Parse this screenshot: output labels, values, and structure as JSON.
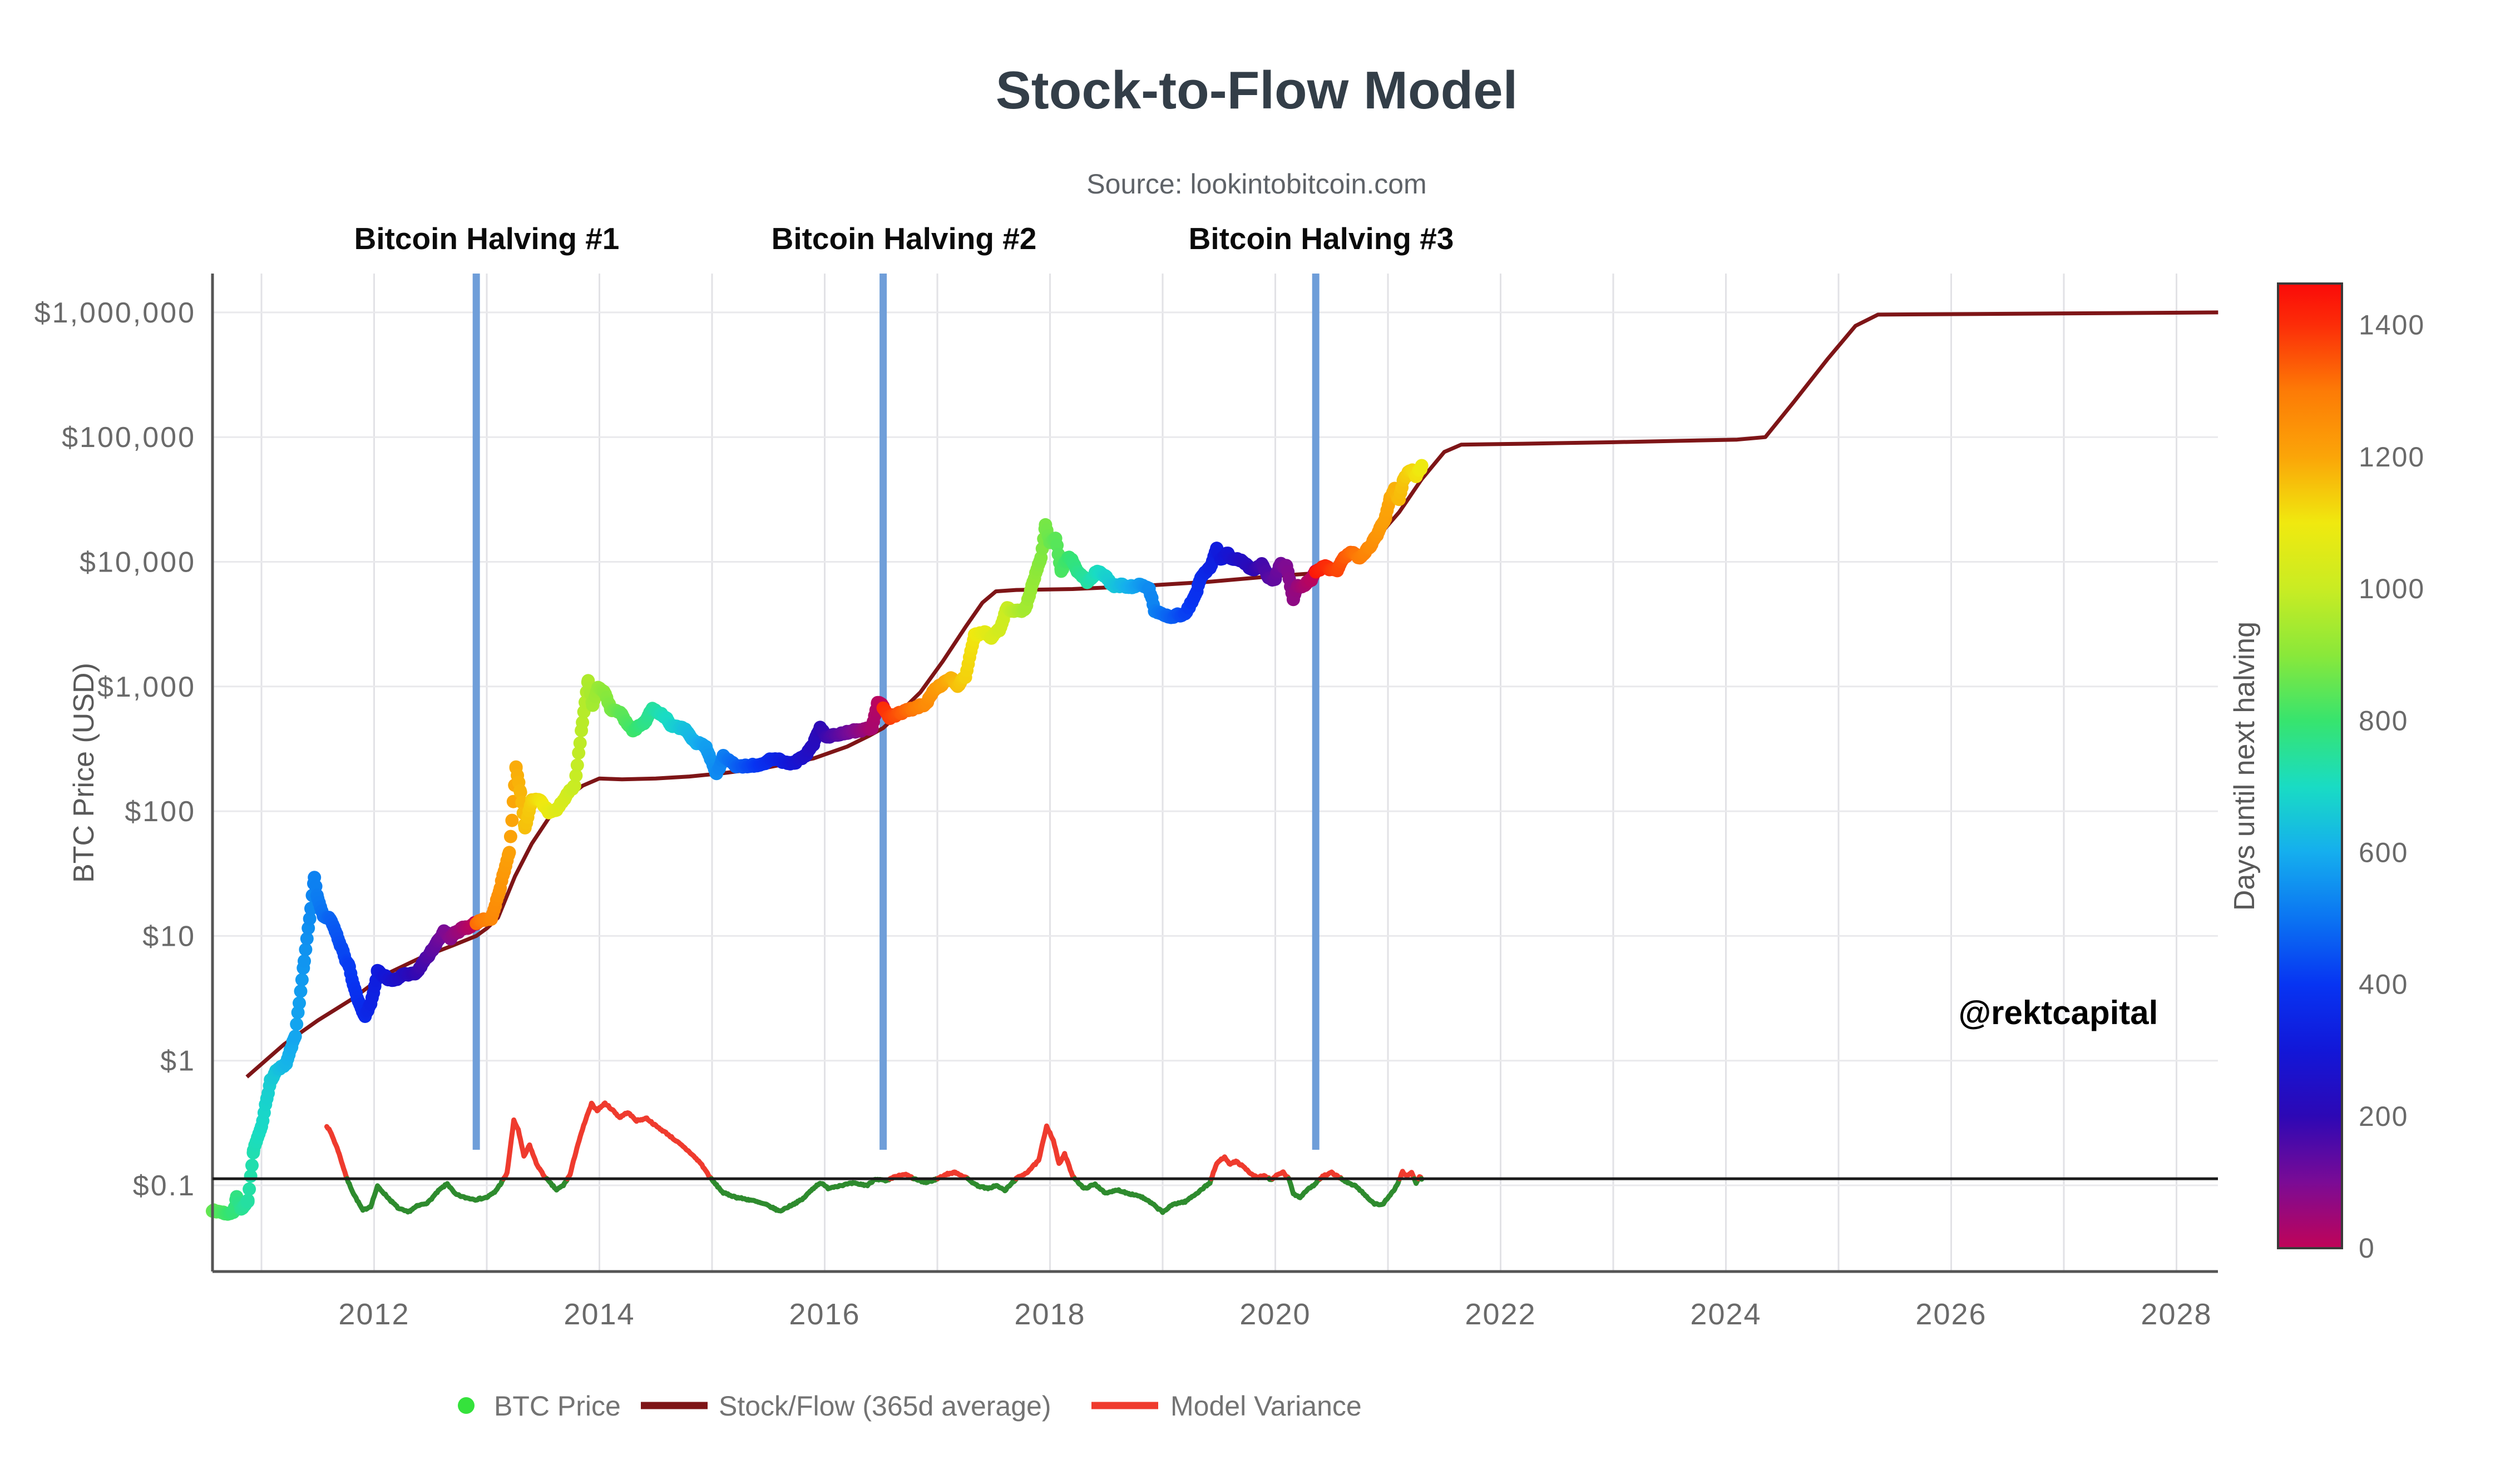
{
  "title": "Stock-to-Flow Model",
  "source": "Source: lookintobitcoin.com",
  "watermark": "@rektcapital",
  "y_axis_title": "BTC Price (USD)",
  "colorbar_title": "Days until next halving",
  "annotations": {
    "halving1": "Bitcoin Halving #1",
    "halving2": "Bitcoin Halving #2",
    "halving3": "Bitcoin Halving #3"
  },
  "legend": {
    "btc_label": "BTC Price",
    "s2f_label": "Stock/Flow (365d average)",
    "variance_label": "Model Variance"
  },
  "colors": {
    "title": "#333e48",
    "s2f_line": "#7e1517",
    "variance_red": "#ef3b2e",
    "variance_green": "#2e8b2e",
    "halving_line": "#6f9ed9",
    "legend_dot_green": "#35e23c",
    "reference_line": "#1a1a1a",
    "axis_frame": "#555555",
    "grid_vertical": "#e2e2e6",
    "grid_horizontal": "#e9e9ec"
  },
  "chart_data": {
    "type": "scatter",
    "title": "Stock-to-Flow Model",
    "xlabel": "",
    "ylabel": "BTC Price (USD)",
    "x_axis": {
      "range": [
        2010.565,
        2028.37
      ],
      "tick_values": [
        2012,
        2014,
        2016,
        2018,
        2020,
        2022,
        2024,
        2026,
        2028
      ],
      "tick_labels": [
        "2012",
        "2014",
        "2016",
        "2018",
        "2020",
        "2022",
        "2024",
        "2026",
        "2028"
      ],
      "gridline_years": [
        2011,
        2012,
        2013,
        2014,
        2015,
        2016,
        2017,
        2018,
        2019,
        2020,
        2021,
        2022,
        2023,
        2024,
        2025,
        2026,
        2027,
        2028
      ]
    },
    "y_axis": {
      "scale": "log",
      "range": [
        0.02,
        2100000
      ],
      "tick_values": [
        1000000,
        100000,
        10000,
        1000,
        100,
        10,
        1,
        0.1
      ],
      "tick_labels": [
        "$1,000,000",
        "$100,000",
        "$10,000",
        "$1,000",
        "$100",
        "$10",
        "$1",
        "$0.1"
      ]
    },
    "reference_line_value": 0.113,
    "halvings": {
      "line_years": [
        2012.907,
        2016.519,
        2020.359
      ],
      "cycle_boundaries": [
        2012.907,
        2016.519,
        2020.359,
        2024.3
      ],
      "max_days": 1463
    },
    "colorbar": {
      "tick_values": [
        0,
        200,
        400,
        600,
        800,
        1000,
        1200,
        1400
      ],
      "vmax": 1463,
      "stops": [
        [
          0,
          "#c00458"
        ],
        [
          100,
          "#7b0b95"
        ],
        [
          200,
          "#2d08b5"
        ],
        [
          300,
          "#1217d8"
        ],
        [
          400,
          "#0734f2"
        ],
        [
          500,
          "#0b74f2"
        ],
        [
          600,
          "#15aeee"
        ],
        [
          700,
          "#19dcc4"
        ],
        [
          800,
          "#37e46e"
        ],
        [
          900,
          "#8ae83a"
        ],
        [
          1000,
          "#c9ec23"
        ],
        [
          1100,
          "#f0e90f"
        ],
        [
          1200,
          "#fba508"
        ],
        [
          1300,
          "#fd7b06"
        ],
        [
          1400,
          "#fc2d08"
        ],
        [
          1463,
          "#fb0a09"
        ]
      ]
    },
    "btc_price_keypoints": [
      [
        2010.565,
        0.062
      ],
      [
        2010.7,
        0.06
      ],
      [
        2010.75,
        0.063
      ],
      [
        2010.78,
        0.085
      ],
      [
        2010.82,
        0.068
      ],
      [
        2010.88,
        0.075
      ],
      [
        2010.93,
        0.19
      ],
      [
        2011.0,
        0.3
      ],
      [
        2011.08,
        0.68
      ],
      [
        2011.15,
        0.85
      ],
      [
        2011.22,
        0.95
      ],
      [
        2011.3,
        1.6
      ],
      [
        2011.38,
        6.5
      ],
      [
        2011.44,
        17
      ],
      [
        2011.47,
        31
      ],
      [
        2011.5,
        20
      ],
      [
        2011.55,
        14.5
      ],
      [
        2011.62,
        13
      ],
      [
        2011.7,
        8
      ],
      [
        2011.78,
        5.5
      ],
      [
        2011.85,
        3.2
      ],
      [
        2011.92,
        2.3
      ],
      [
        2011.97,
        3.0
      ],
      [
        2012.03,
        5.4
      ],
      [
        2012.1,
        4.9
      ],
      [
        2012.18,
        4.4
      ],
      [
        2012.28,
        4.8
      ],
      [
        2012.38,
        5.0
      ],
      [
        2012.46,
        6.5
      ],
      [
        2012.55,
        8.8
      ],
      [
        2012.62,
        11.2
      ],
      [
        2012.68,
        10.2
      ],
      [
        2012.75,
        10.9
      ],
      [
        2012.82,
        11.8
      ],
      [
        2012.907,
        12.3
      ],
      [
        2012.96,
        13.2
      ],
      [
        2013.04,
        13.8
      ],
      [
        2013.12,
        24
      ],
      [
        2013.2,
        47
      ],
      [
        2013.26,
        230
      ],
      [
        2013.3,
        145
      ],
      [
        2013.34,
        77
      ],
      [
        2013.4,
        117
      ],
      [
        2013.48,
        120
      ],
      [
        2013.55,
        97
      ],
      [
        2013.62,
        100
      ],
      [
        2013.7,
        123
      ],
      [
        2013.78,
        155
      ],
      [
        2013.85,
        520
      ],
      [
        2013.9,
        1120
      ],
      [
        2013.94,
        700
      ],
      [
        2013.99,
        940
      ],
      [
        2014.04,
        830
      ],
      [
        2014.1,
        620
      ],
      [
        2014.2,
        590
      ],
      [
        2014.3,
        450
      ],
      [
        2014.4,
        500
      ],
      [
        2014.47,
        640
      ],
      [
        2014.55,
        590
      ],
      [
        2014.65,
        500
      ],
      [
        2014.75,
        480
      ],
      [
        2014.85,
        390
      ],
      [
        2014.95,
        320
      ],
      [
        2015.04,
        210
      ],
      [
        2015.1,
        270
      ],
      [
        2015.2,
        240
      ],
      [
        2015.3,
        235
      ],
      [
        2015.4,
        230
      ],
      [
        2015.5,
        263
      ],
      [
        2015.6,
        255
      ],
      [
        2015.67,
        235
      ],
      [
        2015.75,
        255
      ],
      [
        2015.83,
        270
      ],
      [
        2015.9,
        330
      ],
      [
        2015.96,
        450
      ],
      [
        2016.02,
        385
      ],
      [
        2016.1,
        410
      ],
      [
        2016.2,
        425
      ],
      [
        2016.3,
        440
      ],
      [
        2016.42,
        450
      ],
      [
        2016.47,
        700
      ],
      [
        2016.519,
        655
      ],
      [
        2016.58,
        580
      ],
      [
        2016.65,
        600
      ],
      [
        2016.73,
        630
      ],
      [
        2016.82,
        700
      ],
      [
        2016.9,
        740
      ],
      [
        2016.98,
        960
      ],
      [
        2017.05,
        1080
      ],
      [
        2017.12,
        1190
      ],
      [
        2017.18,
        1040
      ],
      [
        2017.25,
        1250
      ],
      [
        2017.33,
        2550
      ],
      [
        2017.42,
        2650
      ],
      [
        2017.48,
        2450
      ],
      [
        2017.55,
        2750
      ],
      [
        2017.62,
        4300
      ],
      [
        2017.7,
        4200
      ],
      [
        2017.78,
        4400
      ],
      [
        2017.85,
        7300
      ],
      [
        2017.92,
        11000
      ],
      [
        2017.96,
        19200
      ],
      [
        2018.0,
        14000
      ],
      [
        2018.05,
        15200
      ],
      [
        2018.1,
        8300
      ],
      [
        2018.17,
        10900
      ],
      [
        2018.25,
        8200
      ],
      [
        2018.33,
        7000
      ],
      [
        2018.42,
        8300
      ],
      [
        2018.5,
        7600
      ],
      [
        2018.57,
        6300
      ],
      [
        2018.65,
        6500
      ],
      [
        2018.73,
        6400
      ],
      [
        2018.8,
        6700
      ],
      [
        2018.88,
        6300
      ],
      [
        2018.93,
        4100
      ],
      [
        2019.0,
        3800
      ],
      [
        2019.05,
        3600
      ],
      [
        2019.12,
        3900
      ],
      [
        2019.2,
        4000
      ],
      [
        2019.28,
        5300
      ],
      [
        2019.35,
        7900
      ],
      [
        2019.42,
        8600
      ],
      [
        2019.48,
        12600
      ],
      [
        2019.52,
        10800
      ],
      [
        2019.58,
        11800
      ],
      [
        2019.65,
        10300
      ],
      [
        2019.72,
        9800
      ],
      [
        2019.8,
        8300
      ],
      [
        2019.88,
        9200
      ],
      [
        2019.95,
        7200
      ],
      [
        2020.0,
        7200
      ],
      [
        2020.05,
        9400
      ],
      [
        2020.1,
        8800
      ],
      [
        2020.16,
        5000
      ],
      [
        2020.2,
        6300
      ],
      [
        2020.27,
        6800
      ],
      [
        2020.32,
        7300
      ],
      [
        2020.359,
        8750
      ],
      [
        2020.42,
        9600
      ],
      [
        2020.48,
        9200
      ],
      [
        2020.55,
        9150
      ],
      [
        2020.62,
        11200
      ],
      [
        2020.7,
        11700
      ],
      [
        2020.75,
        10600
      ],
      [
        2020.82,
        13100
      ],
      [
        2020.88,
        15500
      ],
      [
        2020.93,
        19200
      ],
      [
        2020.98,
        23800
      ],
      [
        2021.02,
        33000
      ],
      [
        2021.06,
        38000
      ],
      [
        2021.1,
        31500
      ],
      [
        2021.14,
        48000
      ],
      [
        2021.18,
        52000
      ],
      [
        2021.22,
        57000
      ],
      [
        2021.25,
        49000
      ],
      [
        2021.28,
        55000
      ],
      [
        2021.3,
        58800
      ]
    ],
    "s2f_line": [
      [
        2010.87,
        0.74
      ],
      [
        2011.2,
        1.35
      ],
      [
        2011.5,
        2.1
      ],
      [
        2011.8,
        3.1
      ],
      [
        2012.1,
        4.9
      ],
      [
        2012.4,
        6.6
      ],
      [
        2012.7,
        8.4
      ],
      [
        2012.907,
        10.0
      ],
      [
        2013.0,
        11.5
      ],
      [
        2013.1,
        14
      ],
      [
        2013.25,
        30
      ],
      [
        2013.4,
        55
      ],
      [
        2013.55,
        88
      ],
      [
        2013.7,
        126
      ],
      [
        2013.85,
        160
      ],
      [
        2014.0,
        183
      ],
      [
        2014.2,
        180
      ],
      [
        2014.5,
        183
      ],
      [
        2014.8,
        190
      ],
      [
        2015.1,
        202
      ],
      [
        2015.5,
        225
      ],
      [
        2015.9,
        265
      ],
      [
        2016.2,
        330
      ],
      [
        2016.4,
        405
      ],
      [
        2016.519,
        465
      ],
      [
        2016.65,
        600
      ],
      [
        2016.85,
        900
      ],
      [
        2017.05,
        1600
      ],
      [
        2017.25,
        3000
      ],
      [
        2017.4,
        4700
      ],
      [
        2017.52,
        5800
      ],
      [
        2017.7,
        5950
      ],
      [
        2018.2,
        6050
      ],
      [
        2018.8,
        6400
      ],
      [
        2019.4,
        6900
      ],
      [
        2020.0,
        7700
      ],
      [
        2020.359,
        8100
      ],
      [
        2020.5,
        8600
      ],
      [
        2020.7,
        11000
      ],
      [
        2020.9,
        15500
      ],
      [
        2021.1,
        25000
      ],
      [
        2021.3,
        46000
      ],
      [
        2021.5,
        76000
      ],
      [
        2021.65,
        87000
      ],
      [
        2022.2,
        88500
      ],
      [
        2023.0,
        91000
      ],
      [
        2024.1,
        95500
      ],
      [
        2024.35,
        100000
      ],
      [
        2024.6,
        190000
      ],
      [
        2024.9,
        420000
      ],
      [
        2025.15,
        780000
      ],
      [
        2025.35,
        960000
      ],
      [
        2026.5,
        975000
      ],
      [
        2028.37,
        1000000
      ]
    ],
    "variance_keypoints": [
      [
        2011.58,
        0.3
      ],
      [
        2011.62,
        0.26
      ],
      [
        2011.68,
        0.19
      ],
      [
        2011.76,
        0.112
      ],
      [
        2011.82,
        0.085
      ],
      [
        2011.9,
        0.063
      ],
      [
        2011.97,
        0.068
      ],
      [
        2012.03,
        0.098
      ],
      [
        2012.08,
        0.088
      ],
      [
        2012.15,
        0.075
      ],
      [
        2012.22,
        0.065
      ],
      [
        2012.3,
        0.061
      ],
      [
        2012.38,
        0.068
      ],
      [
        2012.48,
        0.073
      ],
      [
        2012.58,
        0.092
      ],
      [
        2012.65,
        0.103
      ],
      [
        2012.72,
        0.085
      ],
      [
        2012.8,
        0.08
      ],
      [
        2012.9,
        0.077
      ],
      [
        2013.0,
        0.08
      ],
      [
        2013.07,
        0.088
      ],
      [
        2013.13,
        0.105
      ],
      [
        2013.18,
        0.125
      ],
      [
        2013.24,
        0.33
      ],
      [
        2013.28,
        0.28
      ],
      [
        2013.33,
        0.17
      ],
      [
        2013.38,
        0.21
      ],
      [
        2013.44,
        0.15
      ],
      [
        2013.5,
        0.122
      ],
      [
        2013.56,
        0.105
      ],
      [
        2013.62,
        0.092
      ],
      [
        2013.68,
        0.1
      ],
      [
        2013.74,
        0.122
      ],
      [
        2013.8,
        0.2
      ],
      [
        2013.87,
        0.32
      ],
      [
        2013.93,
        0.45
      ],
      [
        2013.98,
        0.4
      ],
      [
        2014.05,
        0.455
      ],
      [
        2014.12,
        0.4
      ],
      [
        2014.18,
        0.35
      ],
      [
        2014.25,
        0.385
      ],
      [
        2014.33,
        0.33
      ],
      [
        2014.42,
        0.345
      ],
      [
        2014.5,
        0.3
      ],
      [
        2014.6,
        0.26
      ],
      [
        2014.7,
        0.22
      ],
      [
        2014.8,
        0.185
      ],
      [
        2014.9,
        0.15
      ],
      [
        2015.0,
        0.11
      ],
      [
        2015.1,
        0.087
      ],
      [
        2015.22,
        0.08
      ],
      [
        2015.35,
        0.076
      ],
      [
        2015.48,
        0.07
      ],
      [
        2015.6,
        0.062
      ],
      [
        2015.7,
        0.069
      ],
      [
        2015.8,
        0.077
      ],
      [
        2015.9,
        0.095
      ],
      [
        2015.96,
        0.105
      ],
      [
        2016.03,
        0.095
      ],
      [
        2016.12,
        0.099
      ],
      [
        2016.25,
        0.104
      ],
      [
        2016.38,
        0.1
      ],
      [
        2016.45,
        0.113
      ],
      [
        2016.55,
        0.108
      ],
      [
        2016.63,
        0.118
      ],
      [
        2016.72,
        0.122
      ],
      [
        2016.8,
        0.112
      ],
      [
        2016.9,
        0.105
      ],
      [
        2017.0,
        0.113
      ],
      [
        2017.08,
        0.123
      ],
      [
        2017.16,
        0.127
      ],
      [
        2017.25,
        0.116
      ],
      [
        2017.35,
        0.1
      ],
      [
        2017.45,
        0.094
      ],
      [
        2017.52,
        0.1
      ],
      [
        2017.6,
        0.091
      ],
      [
        2017.7,
        0.113
      ],
      [
        2017.8,
        0.128
      ],
      [
        2017.9,
        0.158
      ],
      [
        2017.97,
        0.3
      ],
      [
        2018.03,
        0.23
      ],
      [
        2018.08,
        0.148
      ],
      [
        2018.13,
        0.178
      ],
      [
        2018.2,
        0.12
      ],
      [
        2018.3,
        0.094
      ],
      [
        2018.4,
        0.102
      ],
      [
        2018.5,
        0.086
      ],
      [
        2018.6,
        0.092
      ],
      [
        2018.7,
        0.086
      ],
      [
        2018.8,
        0.082
      ],
      [
        2018.9,
        0.072
      ],
      [
        2019.0,
        0.061
      ],
      [
        2019.1,
        0.071
      ],
      [
        2019.2,
        0.074
      ],
      [
        2019.3,
        0.086
      ],
      [
        2019.42,
        0.105
      ],
      [
        2019.48,
        0.15
      ],
      [
        2019.55,
        0.17
      ],
      [
        2019.6,
        0.147
      ],
      [
        2019.65,
        0.156
      ],
      [
        2019.72,
        0.14
      ],
      [
        2019.78,
        0.124
      ],
      [
        2019.84,
        0.115
      ],
      [
        2019.9,
        0.12
      ],
      [
        2019.96,
        0.111
      ],
      [
        2020.02,
        0.121
      ],
      [
        2020.07,
        0.127
      ],
      [
        2020.12,
        0.113
      ],
      [
        2020.16,
        0.086
      ],
      [
        2020.22,
        0.08
      ],
      [
        2020.28,
        0.092
      ],
      [
        2020.34,
        0.1
      ],
      [
        2020.42,
        0.118
      ],
      [
        2020.5,
        0.126
      ],
      [
        2020.57,
        0.116
      ],
      [
        2020.65,
        0.104
      ],
      [
        2020.72,
        0.098
      ],
      [
        2020.8,
        0.083
      ],
      [
        2020.88,
        0.071
      ],
      [
        2020.95,
        0.07
      ],
      [
        2021.02,
        0.083
      ],
      [
        2021.08,
        0.1
      ],
      [
        2021.13,
        0.128
      ],
      [
        2021.17,
        0.119
      ],
      [
        2021.21,
        0.127
      ],
      [
        2021.25,
        0.103
      ],
      [
        2021.28,
        0.118
      ],
      [
        2021.3,
        0.112
      ]
    ]
  }
}
